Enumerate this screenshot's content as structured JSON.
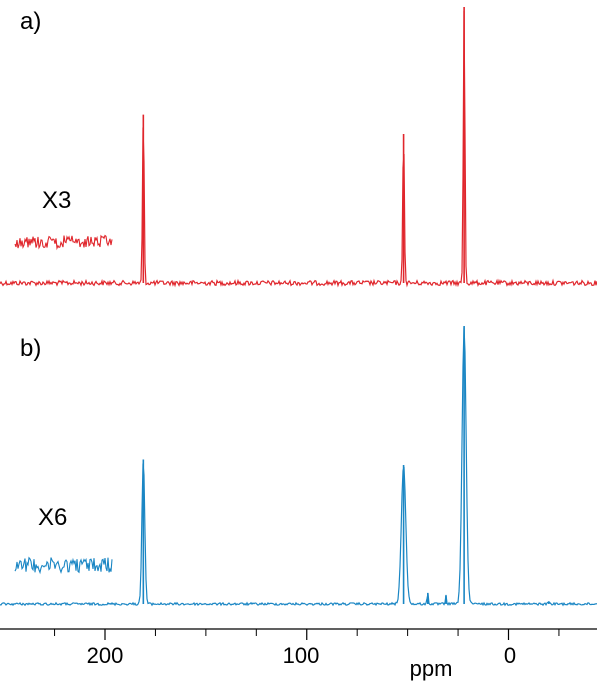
{
  "chart_data": {
    "type": "line",
    "x_axis": {
      "unit_label": "ppm",
      "reversed": true,
      "range": [
        243,
        -42
      ],
      "major_ticks": [
        200,
        100,
        0
      ],
      "tick_labels": [
        "200",
        "100",
        "0"
      ],
      "minor_ticks": [
        225,
        175,
        150,
        125,
        75,
        50,
        25,
        -25
      ]
    },
    "panels": [
      {
        "label": "a)",
        "color": "#e0262c",
        "zoom_label": "X3",
        "peaks": [
          {
            "x": 181,
            "height": 0.61,
            "width": 0.4
          },
          {
            "x": 52,
            "height": 0.54,
            "width": 0.4
          },
          {
            "x": 22,
            "height": 1.0,
            "width": 0.4
          }
        ]
      },
      {
        "label": "b)",
        "color": "#1a86c4",
        "zoom_label": "X6",
        "peaks": [
          {
            "x": 181,
            "height": 0.52,
            "width": 0.7
          },
          {
            "x": 52,
            "height": 0.5,
            "width": 1.1
          },
          {
            "x": 40,
            "height": 0.04,
            "width": 0.3
          },
          {
            "x": 31,
            "height": 0.03,
            "width": 0.3
          },
          {
            "x": 22,
            "height": 1.0,
            "width": 1.0
          },
          {
            "x": -20,
            "height": 0.01,
            "width": 0.3
          }
        ]
      }
    ]
  }
}
